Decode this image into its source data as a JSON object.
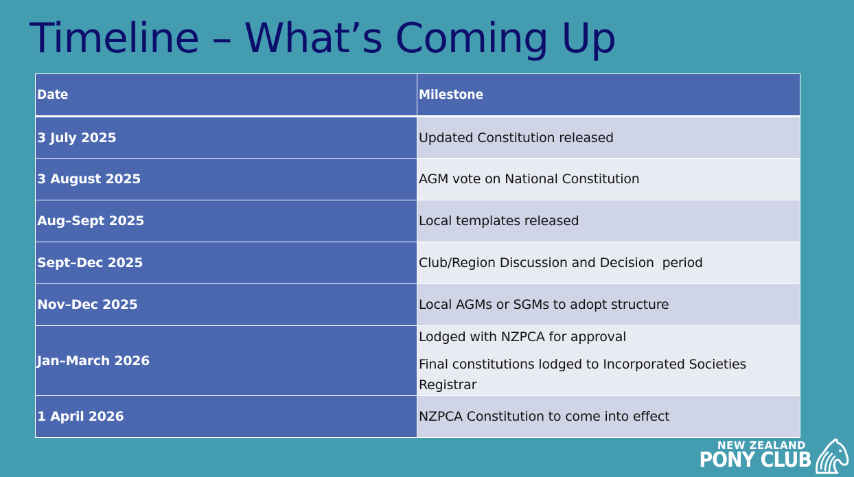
{
  "slide": {
    "title": "Timeline – What’s Coming Up"
  },
  "table": {
    "headers": {
      "date": "Date",
      "milestone": "Milestone"
    },
    "rows": [
      {
        "date": "3 July 2025",
        "milestone": [
          "Updated Constitution released"
        ]
      },
      {
        "date": "3 August 2025",
        "milestone": [
          "AGM vote on National Constitution"
        ]
      },
      {
        "date": "Aug–Sept 2025",
        "milestone": [
          "Local templates released"
        ]
      },
      {
        "date": "Sept–Dec 2025",
        "milestone": [
          "Club/Region Discussion and Decision  period"
        ]
      },
      {
        "date": "Nov–Dec 2025",
        "milestone": [
          "Local AGMs or SGMs to adopt structure"
        ]
      },
      {
        "date": "Jan–March 2026",
        "milestone": [
          "Lodged with NZPCA for approval",
          "Final constitutions lodged to Incorporated Societies Registrar"
        ]
      },
      {
        "date": "1 April 2026",
        "milestone": [
          "NZPCA Constitution to come into effect"
        ]
      }
    ]
  },
  "logo": {
    "line1": "NEW ZEALAND",
    "line2": "PONY CLUB",
    "icon": "horse-head-icon"
  },
  "colors": {
    "background": "#449cb0",
    "title": "#0d0d6b",
    "header_fill": "#4a67b0",
    "row_light": "#e9ebf3",
    "row_mid": "#cfd5e6"
  }
}
